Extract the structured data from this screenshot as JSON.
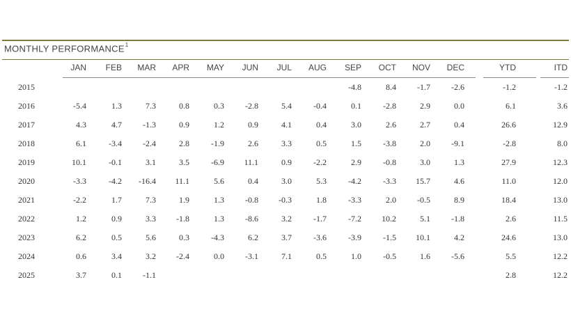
{
  "table": {
    "title": "MONTHLY PERFORMANCE",
    "title_footnote": "1",
    "columns": [
      "JAN",
      "FEB",
      "MAR",
      "APR",
      "MAY",
      "JUN",
      "JUL",
      "AUG",
      "SEP",
      "OCT",
      "NOV",
      "DEC",
      "YTD",
      "ITD"
    ],
    "rows": [
      {
        "year": "2015",
        "values": [
          "",
          "",
          "",
          "",
          "",
          "",
          "",
          "",
          "-4.8",
          "8.4",
          "-1.7",
          "-2.6",
          "-1.2",
          "-1.2"
        ]
      },
      {
        "year": "2016",
        "values": [
          "-5.4",
          "1.3",
          "7.3",
          "0.8",
          "0.3",
          "-2.8",
          "5.4",
          "-0.4",
          "0.1",
          "-2.8",
          "2.9",
          "0.0",
          "6.1",
          "3.6"
        ]
      },
      {
        "year": "2017",
        "values": [
          "4.3",
          "4.7",
          "-1.3",
          "0.9",
          "1.2",
          "0.9",
          "4.1",
          "0.4",
          "3.0",
          "2.6",
          "2.7",
          "0.4",
          "26.6",
          "12.9"
        ]
      },
      {
        "year": "2018",
        "values": [
          "6.1",
          "-3.4",
          "-2.4",
          "2.8",
          "-1.9",
          "2.6",
          "3.3",
          "0.5",
          "1.5",
          "-3.8",
          "2.0",
          "-9.1",
          "-2.8",
          "8.0"
        ]
      },
      {
        "year": "2019",
        "values": [
          "10.1",
          "-0.1",
          "3.1",
          "3.5",
          "-6.9",
          "11.1",
          "0.9",
          "-2.2",
          "2.9",
          "-0.8",
          "3.0",
          "1.3",
          "27.9",
          "12.3"
        ]
      },
      {
        "year": "2020",
        "values": [
          "-3.3",
          "-4.2",
          "-16.4",
          "11.1",
          "5.6",
          "0.4",
          "3.0",
          "5.3",
          "-4.2",
          "-3.3",
          "15.7",
          "4.6",
          "11.0",
          "12.0"
        ]
      },
      {
        "year": "2021",
        "values": [
          "-2.2",
          "1.7",
          "7.3",
          "1.9",
          "1.3",
          "-0.8",
          "-0.3",
          "1.8",
          "-3.3",
          "2.0",
          "-0.5",
          "8.9",
          "18.4",
          "13.0"
        ]
      },
      {
        "year": "2022",
        "values": [
          "1.2",
          "0.9",
          "3.3",
          "-1.8",
          "1.3",
          "-8.6",
          "3.2",
          "-1.7",
          "-7.2",
          "10.2",
          "5.1",
          "-1.8",
          "2.6",
          "11.5"
        ]
      },
      {
        "year": "2023",
        "values": [
          "6.2",
          "0.5",
          "5.6",
          "0.3",
          "-4.3",
          "6.2",
          "3.7",
          "-3.6",
          "-3.9",
          "-1.5",
          "10.1",
          "4.2",
          "24.6",
          "13.0"
        ]
      },
      {
        "year": "2024",
        "values": [
          "0.6",
          "3.4",
          "3.2",
          "-2.4",
          "0.0",
          "-3.1",
          "7.1",
          "0.5",
          "1.0",
          "-0.5",
          "1.6",
          "-5.6",
          "5.5",
          "12.2"
        ]
      },
      {
        "year": "2025",
        "values": [
          "3.7",
          "0.1",
          "-1.1",
          "",
          "",
          "",
          "",
          "",
          "",
          "",
          "",
          "",
          "2.8",
          "12.2"
        ]
      }
    ]
  },
  "colors": {
    "rule": "#7d7a3c",
    "text": "#333333"
  }
}
